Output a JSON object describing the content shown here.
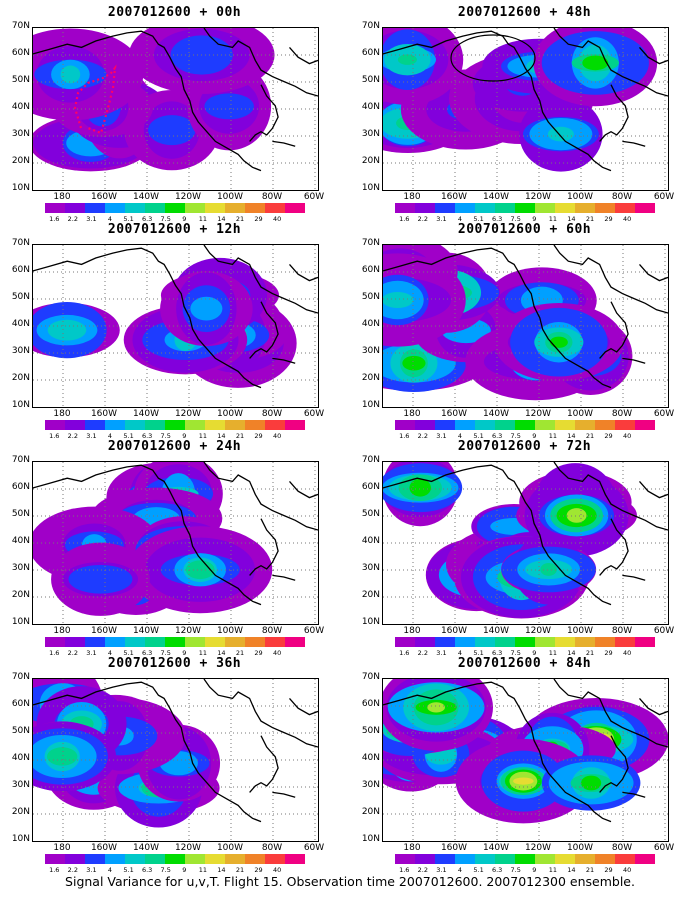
{
  "caption": "Signal Variance for u,v,T. Flight 15. Observation time 2007012600. 2007012300 ensemble.",
  "y_axis_labels": [
    "70N",
    "60N",
    "50N",
    "40N",
    "30N",
    "20N",
    "10N"
  ],
  "x_axis_labels": [
    "180",
    "160W",
    "140W",
    "120W",
    "100W",
    "80W",
    "60W"
  ],
  "colorbar": {
    "levels": [
      "1.6",
      "2.2",
      "3.1",
      "4",
      "5.1",
      "6.3",
      "7.5",
      "9",
      "11",
      "14",
      "21",
      "29",
      "40"
    ],
    "colors": [
      "#a000c8",
      "#8200dc",
      "#1e3cff",
      "#00a0ff",
      "#00c8c8",
      "#00d28c",
      "#00dc00",
      "#a0e632",
      "#e6dc32",
      "#e6af2d",
      "#f08228",
      "#fa3c3c",
      "#f00082"
    ]
  },
  "panels": [
    {
      "title": "2007012600 + 00h",
      "intensity": 0.35
    },
    {
      "title": "2007012600 + 48h",
      "intensity": 0.65
    },
    {
      "title": "2007012600 + 12h",
      "intensity": 0.45
    },
    {
      "title": "2007012600 + 60h",
      "intensity": 0.75
    },
    {
      "title": "2007012600 + 24h",
      "intensity": 0.55
    },
    {
      "title": "2007012600 + 72h",
      "intensity": 0.85
    },
    {
      "title": "2007012600 + 36h",
      "intensity": 0.6
    },
    {
      "title": "2007012600 + 84h",
      "intensity": 1.0
    }
  ]
}
